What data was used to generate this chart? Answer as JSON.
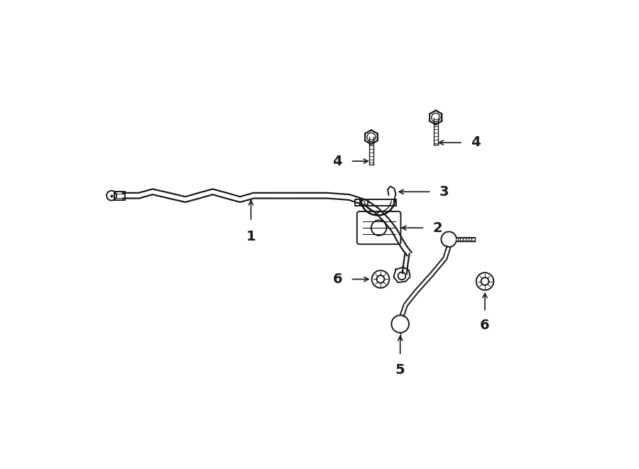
{
  "bg_color": "#ffffff",
  "line_color": "#1a1a1a",
  "figsize": [
    9.0,
    6.61
  ],
  "dpi": 100,
  "bar_color": "#1a1a1a",
  "lw_bar": 1.6,
  "lw_comp": 1.4,
  "lw_thin": 1.0
}
